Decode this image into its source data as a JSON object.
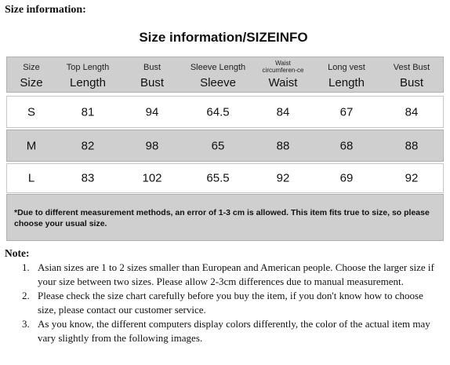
{
  "top_heading": "Size information:",
  "chart": {
    "title": "Size information/SIZEINFO",
    "headers": [
      {
        "small": "Size",
        "big": "Size"
      },
      {
        "small": "Top Length",
        "big": "Length"
      },
      {
        "small": "Bust",
        "big": "Bust"
      },
      {
        "small": "Sleeve Length",
        "big": "Sleeve"
      },
      {
        "small": "Waist circumferen-ce",
        "big": "Waist"
      },
      {
        "small": "Long vest",
        "big": "Length"
      },
      {
        "small": "Vest Bust",
        "big": "Bust"
      }
    ],
    "rows": [
      [
        "S",
        "81",
        "94",
        "64.5",
        "84",
        "67",
        "84"
      ],
      [
        "M",
        "82",
        "98",
        "65",
        "88",
        "68",
        "88"
      ],
      [
        "L",
        "83",
        "102",
        "65.5",
        "92",
        "69",
        "92"
      ]
    ],
    "note": "*Due to different measurement methods, an error of 1-3 cm is allowed. This item fits true to size, so please choose your usual size.",
    "colors": {
      "shaded": "#cfcfcf",
      "border": "#b0b0b0"
    }
  },
  "notes": {
    "heading": "Note:",
    "items": [
      {
        "num": "1.",
        "text": "Asian sizes are 1 to 2 sizes smaller than European and American people. Choose the larger size if your size between two sizes. Please allow 2-3cm differences due to manual measurement."
      },
      {
        "num": "2.",
        "text": "Please check the size chart carefully before you buy the item, if you don't know how to choose size, please contact our customer service."
      },
      {
        "num": "3.",
        "text": "As you know, the different computers display colors differently, the color of the actual item may vary slightly from the following images."
      }
    ]
  }
}
